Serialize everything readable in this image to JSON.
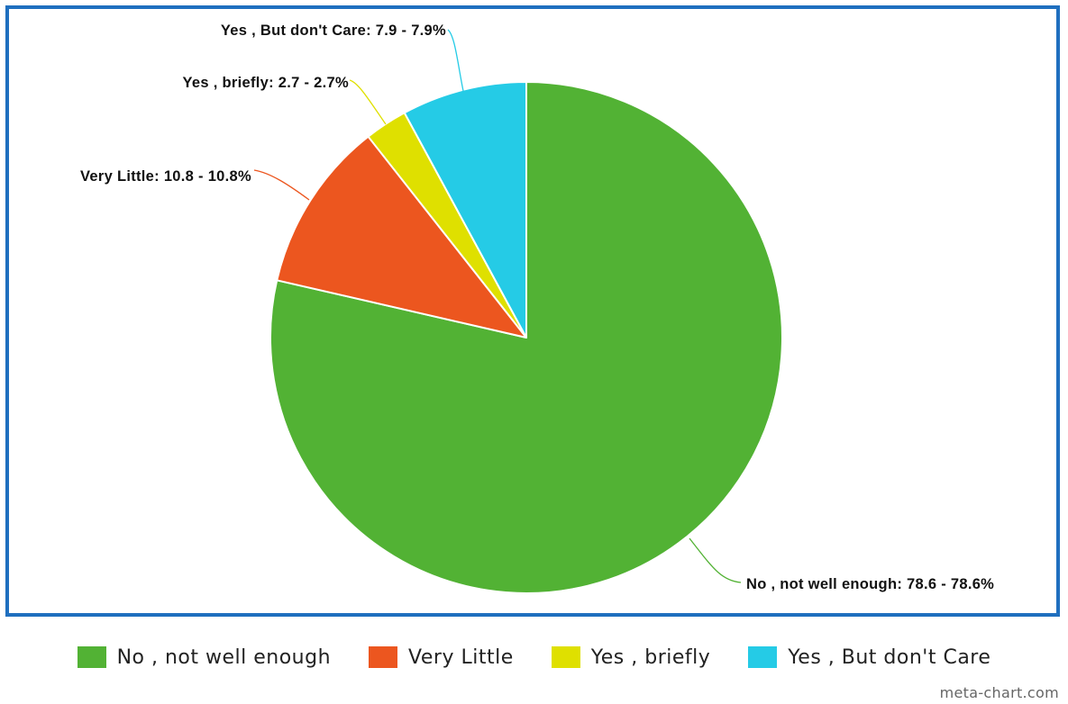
{
  "chart_data": {
    "type": "pie",
    "title": "",
    "label_format": "{label}: {value} - {pct}%",
    "series": [
      {
        "label": "No , not well enough",
        "slice_label": "No , not well enough: 78.6 - 78.6%",
        "value": 78.6,
        "percent": 78.6,
        "color": "#52b234"
      },
      {
        "label": "Very Little",
        "slice_label": "Very Little: 10.8 - 10.8%",
        "value": 10.8,
        "percent": 10.8,
        "color": "#ec561f"
      },
      {
        "label": "Yes , briefly",
        "slice_label": "Yes , briefly: 2.7 - 2.7%",
        "value": 2.7,
        "percent": 2.7,
        "color": "#dfe000"
      },
      {
        "label": "Yes , But don't Care",
        "slice_label": "Yes , But don't Care: 7.9 - 7.9%",
        "value": 7.9,
        "percent": 7.9,
        "color": "#25cbe6"
      }
    ],
    "legend_position": "bottom",
    "start_angle": "12 o'clock, clockwise"
  },
  "legend": {
    "items": [
      {
        "label": "No , not well enough",
        "color": "#52b234"
      },
      {
        "label": "Very Little",
        "color": "#ec561f"
      },
      {
        "label": "Yes , briefly",
        "color": "#dfe000"
      },
      {
        "label": "Yes , But don't Care",
        "color": "#25cbe6"
      }
    ]
  },
  "credit": "meta-chart.com",
  "frame_color": "#1f6fbf"
}
